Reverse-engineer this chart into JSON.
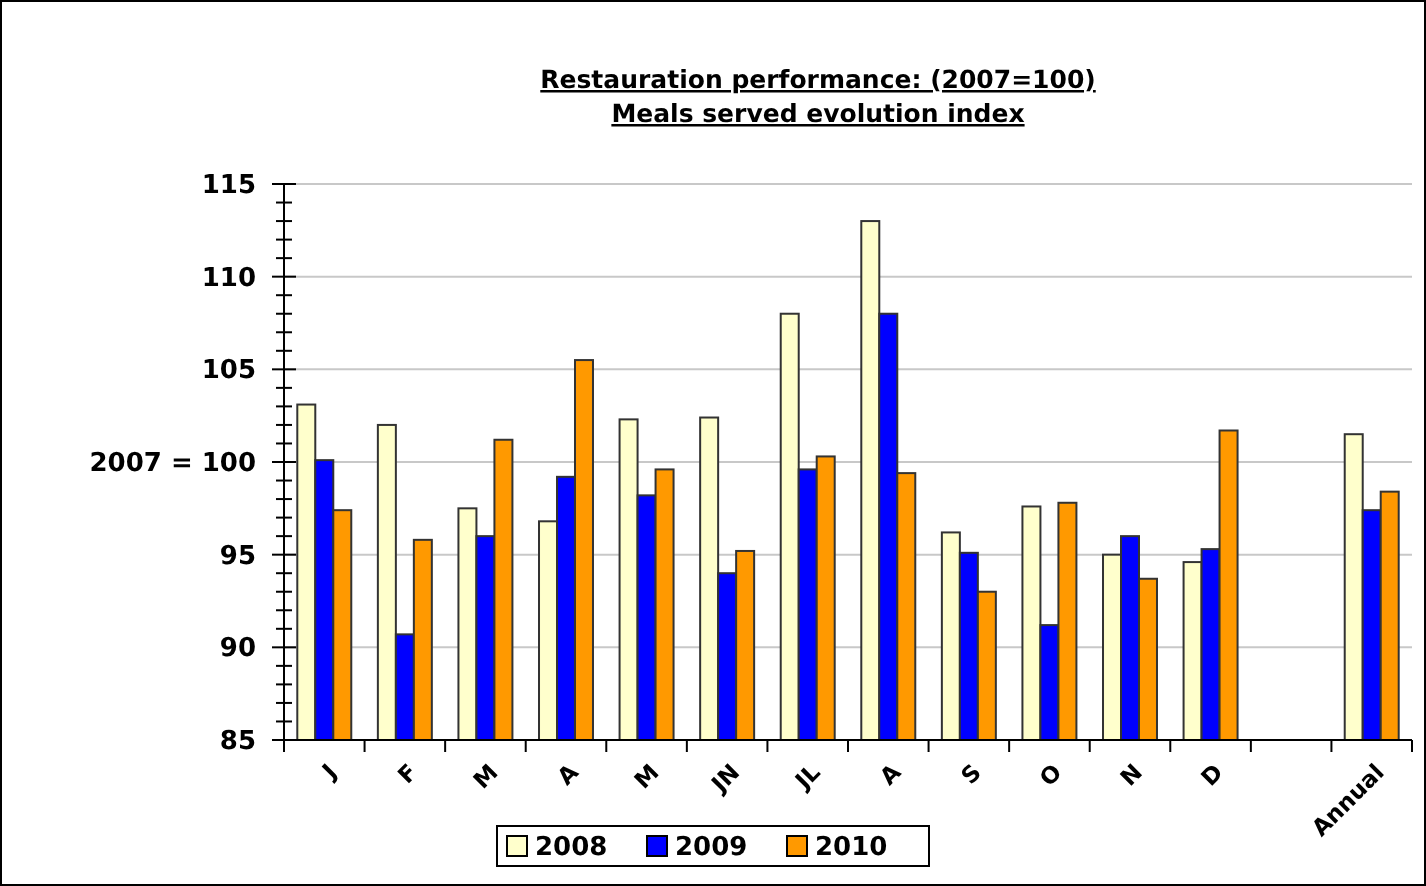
{
  "chart_data": {
    "type": "bar",
    "title": "Restauration performance: (2007=100)\nMeals served evolution index",
    "categories": [
      "J",
      "F",
      "M",
      "A",
      "M",
      "JN",
      "JL",
      "A",
      "S",
      "O",
      "N",
      "D",
      null,
      "Annual"
    ],
    "series": [
      {
        "name": "2008",
        "color": "#ffffcc",
        "values": [
          103.1,
          102.0,
          97.5,
          96.8,
          102.3,
          102.4,
          108.0,
          113.0,
          96.2,
          97.6,
          95.0,
          94.6,
          null,
          101.5
        ]
      },
      {
        "name": "2009",
        "color": "#0000ff",
        "values": [
          100.1,
          90.7,
          96.0,
          99.2,
          98.2,
          94.0,
          99.6,
          108.0,
          95.1,
          91.2,
          96.0,
          95.3,
          null,
          97.4
        ]
      },
      {
        "name": "2010",
        "color": "#ff9900",
        "values": [
          97.4,
          95.8,
          101.2,
          105.5,
          99.6,
          95.2,
          100.3,
          99.4,
          93.0,
          97.8,
          93.7,
          101.7,
          null,
          98.4
        ]
      }
    ],
    "ylim": [
      85,
      115
    ],
    "yticks": [
      85,
      {
        "value": 86,
        "label": null
      },
      {
        "value": 87,
        "label": null
      },
      {
        "value": 88,
        "label": null
      },
      {
        "value": 89,
        "label": null
      },
      90,
      {
        "value": 91,
        "label": null
      },
      {
        "value": 92,
        "label": null
      },
      {
        "value": 93,
        "label": null
      },
      {
        "value": 94,
        "label": null
      },
      95,
      {
        "value": 96,
        "label": null
      },
      {
        "value": 97,
        "label": null
      },
      {
        "value": 98,
        "label": null
      },
      {
        "value": 99,
        "label": null
      },
      {
        "value": 100,
        "label": "2007 = 100"
      },
      {
        "value": 101,
        "label": null
      },
      {
        "value": 102,
        "label": null
      },
      {
        "value": 103,
        "label": null
      },
      {
        "value": 104,
        "label": null
      },
      105,
      {
        "value": 106,
        "label": null
      },
      {
        "value": 107,
        "label": null
      },
      {
        "value": 108,
        "label": null
      },
      {
        "value": 109,
        "label": null
      },
      110,
      {
        "value": 111,
        "label": null
      },
      {
        "value": 112,
        "label": null
      },
      {
        "value": 113,
        "label": null
      },
      {
        "value": 114,
        "label": null
      },
      115
    ],
    "grid": "y",
    "legend": "bottom"
  }
}
